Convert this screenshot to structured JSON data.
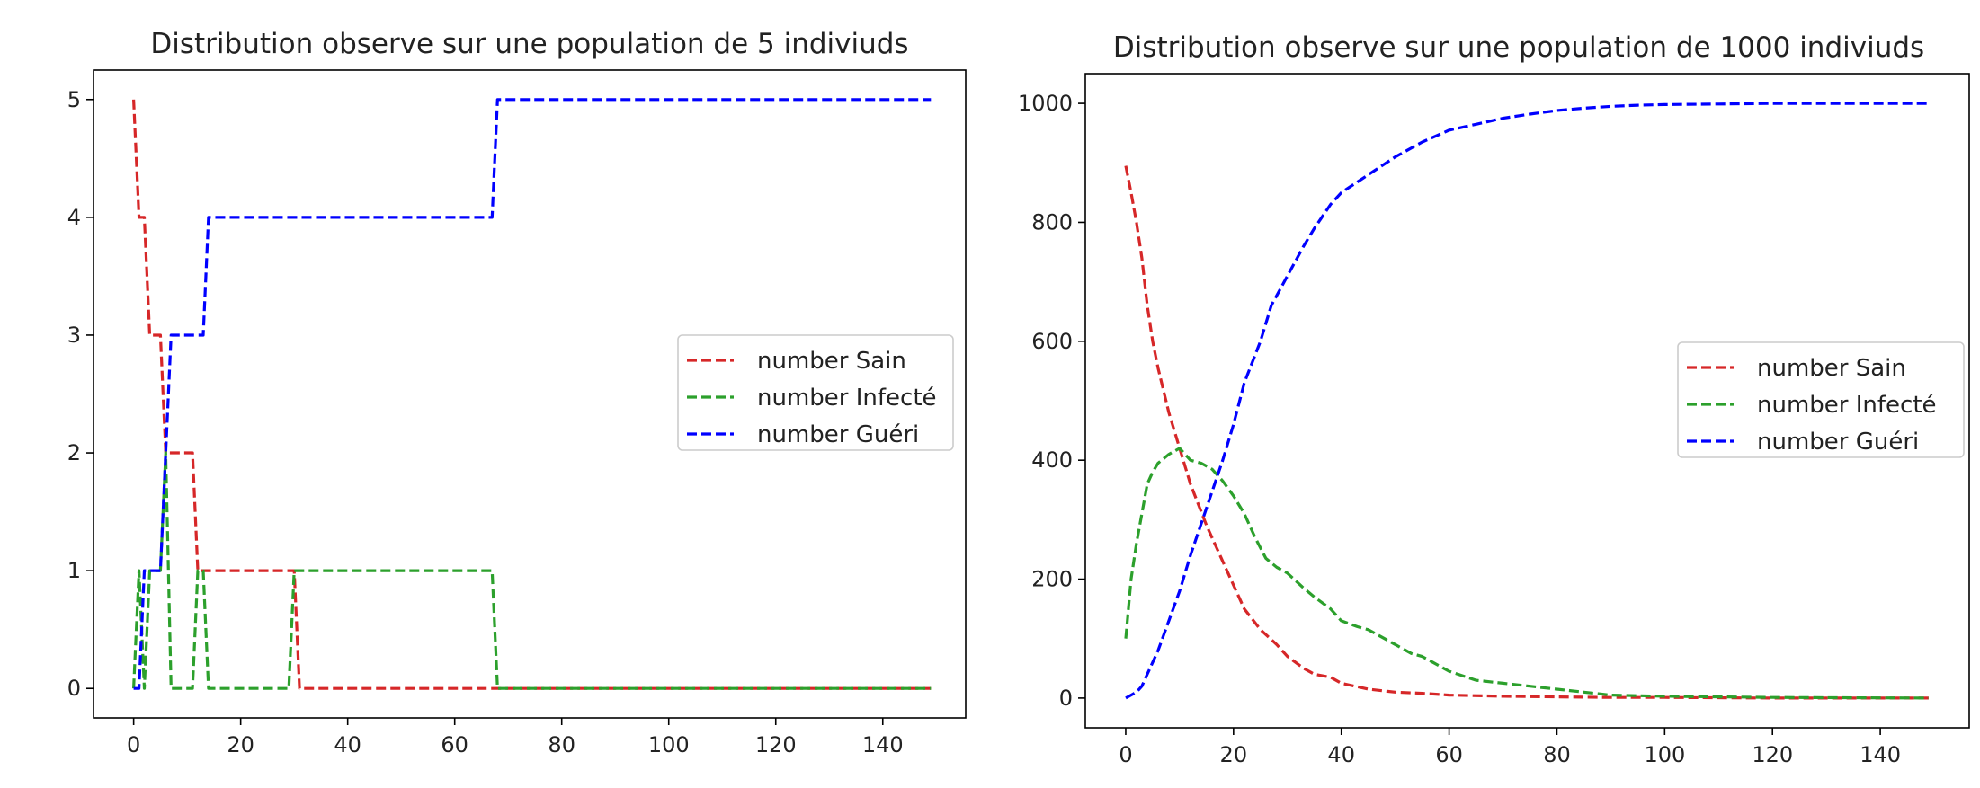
{
  "chart_data": [
    {
      "type": "line",
      "title": "Distribution observe sur une population de 5 indiviuds",
      "xlabel": "",
      "ylabel": "",
      "xlim": [
        -7.5,
        155.5
      ],
      "ylim": [
        -0.25,
        5.25
      ],
      "xticks": [
        0,
        20,
        40,
        60,
        80,
        100,
        120,
        140
      ],
      "yticks": [
        0,
        1,
        2,
        3,
        4,
        5
      ],
      "grid": false,
      "legend_position": "center-right",
      "series": [
        {
          "name": "number Sain",
          "color": "#d62728",
          "x": [
            0,
            1,
            2,
            3,
            4,
            5,
            6,
            7,
            11,
            12,
            30,
            31,
            149
          ],
          "y": [
            5,
            4,
            4,
            3,
            3,
            3,
            2,
            2,
            2,
            1,
            1,
            0,
            0
          ]
        },
        {
          "name": "number Infecté",
          "color": "#2ca02c",
          "x": [
            0,
            1,
            2,
            3,
            4,
            5,
            6,
            7,
            11,
            12,
            13,
            14,
            29,
            30,
            31,
            67,
            68,
            149
          ],
          "y": [
            0,
            1,
            0,
            1,
            1,
            1,
            2,
            0,
            0,
            1,
            1,
            0,
            0,
            1,
            1,
            1,
            0,
            0
          ]
        },
        {
          "name": "number Guéri",
          "color": "#0000ff",
          "x": [
            0,
            1,
            2,
            5,
            6,
            7,
            13,
            14,
            67,
            68,
            149
          ],
          "y": [
            0,
            0,
            1,
            1,
            2,
            3,
            3,
            4,
            4,
            5,
            5
          ]
        }
      ]
    },
    {
      "type": "line",
      "title": "Distribution observe sur une population de 1000 indiviuds",
      "xlabel": "",
      "ylabel": "",
      "xlim": [
        -7.5,
        156.5
      ],
      "ylim": [
        -50,
        1050
      ],
      "xticks": [
        0,
        20,
        40,
        60,
        80,
        100,
        120,
        140
      ],
      "yticks": [
        0,
        200,
        400,
        600,
        800,
        1000
      ],
      "grid": false,
      "legend_position": "center-right",
      "series": [
        {
          "name": "number Sain",
          "color": "#d62728",
          "x": [
            0,
            1,
            2,
            3,
            4,
            5,
            6,
            8,
            10,
            12,
            15,
            18,
            20,
            22,
            25,
            28,
            30,
            33,
            35,
            38,
            40,
            45,
            50,
            55,
            60,
            70,
            80,
            90,
            100,
            120,
            149
          ],
          "y": [
            895,
            850,
            800,
            740,
            660,
            600,
            555,
            480,
            420,
            360,
            290,
            230,
            190,
            150,
            115,
            90,
            70,
            50,
            40,
            35,
            25,
            15,
            10,
            8,
            5,
            3,
            2,
            1,
            1,
            0,
            0
          ]
        },
        {
          "name": "number Infecté",
          "color": "#2ca02c",
          "x": [
            0,
            1,
            2,
            3,
            4,
            5,
            6,
            8,
            10,
            12,
            14,
            16,
            18,
            20,
            22,
            24,
            26,
            28,
            30,
            33,
            35,
            38,
            40,
            43,
            45,
            48,
            50,
            53,
            55,
            58,
            60,
            65,
            70,
            75,
            80,
            85,
            90,
            100,
            120,
            149
          ],
          "y": [
            100,
            200,
            260,
            310,
            360,
            380,
            395,
            410,
            420,
            400,
            395,
            385,
            365,
            340,
            310,
            270,
            235,
            220,
            210,
            185,
            170,
            150,
            130,
            120,
            115,
            100,
            90,
            75,
            70,
            55,
            45,
            30,
            25,
            20,
            15,
            10,
            5,
            3,
            1,
            0
          ]
        },
        {
          "name": "number Guéri",
          "color": "#0000ff",
          "x": [
            0,
            1,
            2,
            3,
            4,
            5,
            6,
            8,
            10,
            12,
            15,
            18,
            20,
            22,
            25,
            27,
            30,
            33,
            35,
            38,
            40,
            45,
            50,
            55,
            60,
            65,
            70,
            75,
            80,
            85,
            90,
            95,
            100,
            110,
            120,
            130,
            149
          ],
          "y": [
            0,
            5,
            10,
            20,
            40,
            60,
            80,
            130,
            180,
            240,
            320,
            400,
            460,
            530,
            600,
            660,
            710,
            760,
            790,
            830,
            850,
            880,
            910,
            935,
            955,
            965,
            975,
            982,
            988,
            992,
            995,
            997,
            998,
            999,
            1000,
            1000,
            1000
          ]
        }
      ]
    }
  ]
}
